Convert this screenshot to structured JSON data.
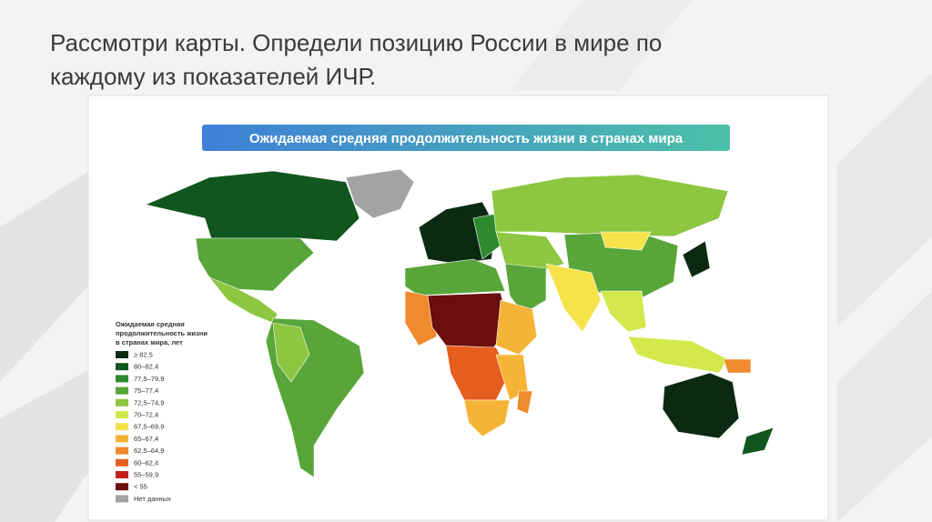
{
  "header": {
    "title_lines": [
      "Рассмотри карты. Определи позицию России в мире по",
      "каждому из показателей ИЧР."
    ]
  },
  "map": {
    "title": "Ожидаемая средняя продолжительность жизни в странах мира",
    "legend": {
      "title_lines": [
        "Ожидаемая средняя",
        "продолжительность жизни",
        "в странах мира, лет"
      ],
      "items": [
        {
          "label": "≥ 82,5",
          "color": "#0c2a12"
        },
        {
          "label": "80–82,4",
          "color": "#11561e"
        },
        {
          "label": "77,5–79,9",
          "color": "#2f8a2f"
        },
        {
          "label": "75–77,4",
          "color": "#58a63a"
        },
        {
          "label": "72,5–74,9",
          "color": "#8dc641"
        },
        {
          "label": "70–72,4",
          "color": "#d3e84c"
        },
        {
          "label": "67,5–69,9",
          "color": "#f6e34a"
        },
        {
          "label": "65–67,4",
          "color": "#f6b437"
        },
        {
          "label": "62,5–64,9",
          "color": "#f08a2c"
        },
        {
          "label": "60–62,4",
          "color": "#e55e1e"
        },
        {
          "label": "55–59,9",
          "color": "#c41f1f"
        },
        {
          "label": "< 55",
          "color": "#6a0e0e"
        },
        {
          "label": "Нет данных",
          "color": "#a3a3a3"
        }
      ]
    }
  }
}
